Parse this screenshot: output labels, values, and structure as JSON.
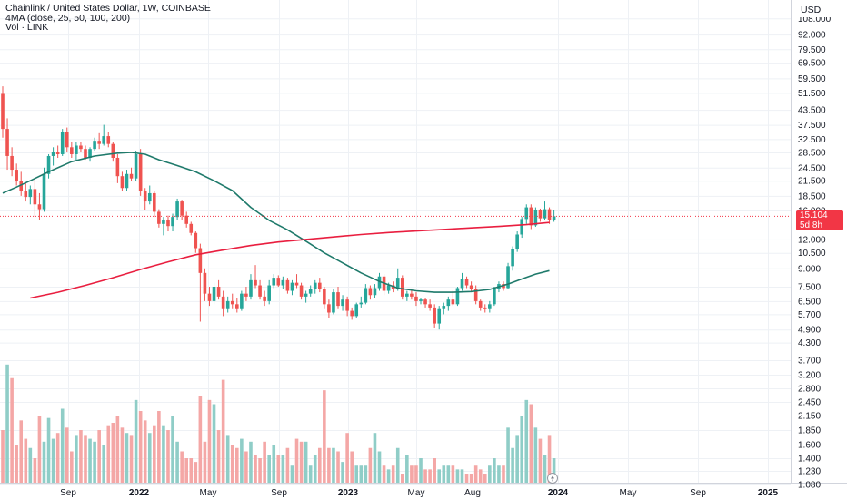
{
  "legend": {
    "title": "Chainlink / United States Dollar, 1W, COINBASE",
    "ma_label": "4MA (close, 25, 50, 100, 200)",
    "vol_label": "Vol · LINK"
  },
  "currency_button": "USD",
  "last_price": {
    "value": "15.104",
    "countdown": "5d 8h"
  },
  "colors": {
    "up": "#26a69a",
    "down": "#ef5350",
    "up_vol": "#8fcdc7",
    "down_vol": "#f4a7a6",
    "ma_short": "#1f7a6b",
    "ma_long": "#e91e3f",
    "grid": "#eef1f5",
    "text": "#131722"
  },
  "chart_data": {
    "type": "candlestick",
    "series_name": "Chainlink / United States Dollar",
    "y_scale": "log",
    "y_ticks": [
      "108.000",
      "92.000",
      "79.500",
      "69.500",
      "59.500",
      "51.500",
      "43.500",
      "37.500",
      "32.500",
      "28.500",
      "24.500",
      "21.500",
      "18.500",
      "16.000",
      "12.000",
      "10.500",
      "9.000",
      "7.500",
      "6.500",
      "5.700",
      "4.900",
      "4.300",
      "3.700",
      "3.200",
      "2.800",
      "2.450",
      "2.150",
      "1.850",
      "1.600",
      "1.400",
      "1.230",
      "1.080"
    ],
    "x_ticks": [
      "Sep",
      "2022",
      "May",
      "Sep",
      "2023",
      "May",
      "Aug",
      "2024",
      "May",
      "Sep",
      "2025"
    ],
    "current_price": 15.104,
    "candles": [
      [
        51.0,
        55.0,
        33.0,
        36.0
      ],
      [
        36.0,
        40.0,
        24.0,
        27.5
      ],
      [
        27.5,
        30.0,
        22.5,
        24.0
      ],
      [
        24.0,
        25.5,
        20.5,
        21.5
      ],
      [
        21.5,
        23.5,
        18.5,
        19.5
      ],
      [
        19.5,
        21.0,
        17.5,
        18.3
      ],
      [
        18.3,
        20.5,
        17.0,
        19.8
      ],
      [
        19.8,
        22.0,
        15.0,
        17.0
      ],
      [
        17.0,
        19.0,
        14.5,
        16.2
      ],
      [
        16.2,
        24.5,
        15.8,
        23.0
      ],
      [
        23.0,
        28.0,
        22.0,
        27.5
      ],
      [
        27.5,
        30.0,
        25.0,
        28.5
      ],
      [
        28.5,
        30.5,
        27.0,
        28.0
      ],
      [
        28.0,
        36.0,
        27.5,
        35.0
      ],
      [
        35.0,
        36.5,
        28.5,
        30.0
      ],
      [
        30.0,
        31.5,
        27.0,
        28.0
      ],
      [
        28.0,
        31.5,
        26.5,
        30.5
      ],
      [
        30.5,
        31.5,
        28.5,
        29.5
      ],
      [
        29.5,
        30.5,
        26.5,
        27.0
      ],
      [
        27.0,
        30.0,
        26.0,
        29.5
      ],
      [
        29.5,
        33.0,
        29.0,
        32.0
      ],
      [
        32.0,
        34.5,
        29.5,
        31.0
      ],
      [
        31.0,
        37.5,
        30.5,
        33.5
      ],
      [
        33.5,
        35.0,
        30.0,
        31.0
      ],
      [
        31.0,
        31.5,
        26.0,
        27.0
      ],
      [
        27.0,
        28.0,
        21.0,
        22.5
      ],
      [
        22.5,
        23.5,
        19.5,
        20.0
      ],
      [
        20.0,
        24.0,
        19.5,
        23.0
      ],
      [
        23.0,
        24.5,
        21.5,
        22.0
      ],
      [
        22.0,
        29.0,
        21.5,
        28.0
      ],
      [
        28.0,
        29.5,
        18.5,
        19.5
      ],
      [
        19.5,
        20.0,
        16.0,
        17.5
      ],
      [
        17.5,
        20.5,
        17.0,
        19.0
      ],
      [
        19.0,
        19.5,
        15.0,
        15.8
      ],
      [
        15.8,
        16.2,
        13.5,
        14.0
      ],
      [
        14.0,
        15.0,
        12.5,
        14.6
      ],
      [
        14.6,
        15.2,
        13.0,
        13.7
      ],
      [
        13.7,
        15.5,
        13.0,
        15.0
      ],
      [
        15.0,
        18.0,
        14.5,
        17.5
      ],
      [
        17.5,
        17.8,
        14.5,
        15.2
      ],
      [
        15.2,
        15.8,
        13.5,
        14.0
      ],
      [
        14.0,
        14.3,
        12.5,
        12.8
      ],
      [
        12.8,
        13.0,
        10.5,
        11.0
      ],
      [
        11.0,
        11.5,
        5.3,
        8.6
      ],
      [
        8.6,
        9.0,
        6.5,
        7.0
      ],
      [
        7.0,
        7.5,
        6.2,
        6.5
      ],
      [
        6.5,
        7.8,
        6.3,
        7.5
      ],
      [
        7.5,
        8.0,
        6.6,
        6.8
      ],
      [
        6.8,
        7.2,
        5.6,
        6.0
      ],
      [
        6.0,
        6.8,
        5.8,
        6.5
      ],
      [
        6.5,
        7.0,
        6.0,
        6.3
      ],
      [
        6.3,
        6.7,
        5.8,
        6.0
      ],
      [
        6.0,
        7.2,
        5.9,
        7.0
      ],
      [
        7.0,
        7.5,
        6.5,
        6.8
      ],
      [
        6.8,
        8.5,
        6.6,
        8.0
      ],
      [
        8.0,
        9.3,
        7.4,
        7.6
      ],
      [
        7.6,
        8.0,
        6.6,
        6.8
      ],
      [
        6.8,
        7.2,
        6.2,
        6.5
      ],
      [
        6.5,
        8.0,
        6.3,
        7.6
      ],
      [
        7.6,
        8.5,
        7.4,
        8.2
      ],
      [
        8.2,
        8.4,
        7.5,
        7.6
      ],
      [
        7.6,
        8.3,
        7.3,
        8.0
      ],
      [
        8.0,
        8.2,
        7.0,
        7.2
      ],
      [
        7.2,
        8.0,
        6.9,
        7.8
      ],
      [
        7.8,
        8.5,
        7.4,
        7.6
      ],
      [
        7.6,
        7.8,
        6.6,
        6.8
      ],
      [
        6.8,
        7.2,
        6.4,
        7.0
      ],
      [
        7.0,
        7.6,
        6.8,
        7.3
      ],
      [
        7.3,
        8.0,
        7.0,
        7.8
      ],
      [
        7.8,
        8.2,
        7.1,
        7.3
      ],
      [
        7.3,
        7.5,
        6.0,
        6.3
      ],
      [
        6.3,
        6.6,
        5.5,
        5.8
      ],
      [
        5.8,
        7.3,
        5.7,
        7.1
      ],
      [
        7.1,
        7.5,
        6.0,
        6.2
      ],
      [
        6.2,
        6.9,
        5.9,
        6.6
      ],
      [
        6.6,
        6.8,
        5.6,
        5.9
      ],
      [
        5.9,
        6.1,
        5.4,
        5.6
      ],
      [
        5.6,
        6.4,
        5.5,
        6.3
      ],
      [
        6.3,
        6.8,
        6.1,
        6.4
      ],
      [
        6.4,
        7.7,
        6.3,
        7.4
      ],
      [
        7.4,
        7.6,
        6.6,
        6.9
      ],
      [
        6.9,
        7.7,
        6.7,
        7.4
      ],
      [
        7.4,
        8.6,
        7.2,
        8.3
      ],
      [
        8.3,
        8.5,
        6.9,
        7.2
      ],
      [
        7.2,
        7.8,
        7.0,
        7.6
      ],
      [
        7.6,
        7.9,
        7.1,
        7.3
      ],
      [
        7.3,
        9.0,
        7.2,
        8.2
      ],
      [
        8.2,
        8.4,
        6.6,
        6.8
      ],
      [
        6.8,
        7.2,
        6.5,
        7.0
      ],
      [
        7.0,
        7.3,
        6.6,
        6.8
      ],
      [
        6.8,
        7.1,
        6.2,
        6.5
      ],
      [
        6.5,
        6.7,
        6.3,
        6.6
      ],
      [
        6.6,
        6.7,
        6.1,
        6.3
      ],
      [
        6.3,
        6.6,
        5.9,
        6.1
      ],
      [
        6.1,
        6.3,
        5.0,
        5.2
      ],
      [
        5.2,
        6.2,
        4.9,
        6.0
      ],
      [
        6.0,
        6.4,
        5.7,
        6.2
      ],
      [
        6.2,
        6.8,
        5.9,
        6.6
      ],
      [
        6.6,
        7.2,
        6.2,
        6.3
      ],
      [
        6.3,
        7.5,
        6.2,
        7.4
      ],
      [
        7.4,
        8.6,
        7.2,
        8.1
      ],
      [
        8.1,
        8.3,
        7.4,
        7.6
      ],
      [
        7.6,
        7.9,
        7.1,
        7.3
      ],
      [
        7.3,
        7.6,
        6.3,
        6.5
      ],
      [
        6.5,
        6.6,
        5.9,
        6.1
      ],
      [
        6.1,
        6.3,
        5.8,
        6.0
      ],
      [
        6.0,
        6.5,
        5.8,
        6.3
      ],
      [
        6.3,
        7.5,
        6.2,
        7.3
      ],
      [
        7.3,
        7.9,
        7.1,
        7.7
      ],
      [
        7.7,
        7.9,
        7.2,
        7.4
      ],
      [
        7.4,
        9.5,
        7.3,
        9.2
      ],
      [
        9.2,
        11.2,
        8.8,
        10.9
      ],
      [
        10.9,
        13.0,
        10.6,
        12.6
      ],
      [
        12.6,
        15.0,
        12.2,
        14.7
      ],
      [
        14.7,
        17.0,
        14.0,
        16.5
      ],
      [
        16.5,
        17.0,
        13.3,
        13.8
      ],
      [
        13.8,
        16.5,
        13.6,
        16.0
      ],
      [
        16.0,
        16.3,
        14.3,
        14.8
      ],
      [
        14.8,
        17.5,
        14.6,
        16.2
      ],
      [
        16.2,
        16.5,
        14.0,
        14.6
      ],
      [
        14.6,
        16.0,
        14.3,
        15.104
      ]
    ],
    "volume": [
      1.85,
      3.55,
      3.1,
      1.6,
      2.05,
      1.7,
      1.55,
      1.4,
      2.15,
      1.65,
      2.1,
      1.7,
      1.8,
      2.3,
      1.9,
      1.5,
      1.75,
      1.85,
      1.75,
      1.7,
      1.65,
      1.85,
      1.6,
      1.95,
      2.0,
      2.15,
      1.9,
      1.8,
      1.75,
      2.5,
      2.25,
      2.05,
      1.8,
      1.95,
      2.25,
      1.95,
      1.85,
      2.15,
      1.65,
      1.5,
      1.4,
      1.4,
      1.35,
      2.6,
      1.65,
      2.5,
      2.4,
      1.85,
      3.05,
      1.75,
      1.6,
      1.55,
      1.7,
      1.5,
      1.65,
      1.45,
      1.4,
      1.65,
      1.45,
      1.6,
      1.45,
      1.45,
      1.55,
      1.3,
      1.7,
      1.65,
      1.65,
      1.3,
      1.45,
      1.55,
      2.75,
      1.55,
      1.55,
      1.5,
      1.35,
      1.8,
      1.5,
      1.3,
      1.3,
      1.3,
      1.55,
      1.8,
      1.5,
      1.3,
      1.25,
      1.3,
      1.55,
      1.2,
      1.45,
      1.3,
      1.3,
      1.4,
      1.25,
      1.25,
      1.4,
      1.25,
      1.3,
      1.3,
      1.3,
      1.25,
      1.25,
      1.2,
      1.2,
      1.3,
      1.25,
      1.2,
      1.3,
      1.4,
      1.3,
      1.3,
      1.9,
      1.55,
      1.75,
      2.15,
      2.5,
      2.4,
      1.9,
      1.7,
      1.45,
      1.75,
      1.4
    ],
    "volume_up": [
      false,
      true,
      false,
      false,
      false,
      false,
      true,
      false,
      false,
      true,
      true,
      true,
      false,
      true,
      false,
      false,
      true,
      false,
      false,
      true,
      true,
      false,
      true,
      false,
      false,
      false,
      false,
      true,
      false,
      true,
      false,
      false,
      true,
      false,
      false,
      true,
      false,
      true,
      true,
      false,
      false,
      false,
      false,
      false,
      false,
      false,
      true,
      false,
      false,
      true,
      false,
      false,
      true,
      false,
      true,
      false,
      false,
      false,
      true,
      true,
      false,
      true,
      false,
      true,
      false,
      false,
      true,
      true,
      true,
      false,
      false,
      false,
      true,
      false,
      true,
      false,
      false,
      true,
      true,
      true,
      false,
      true,
      true,
      false,
      true,
      false,
      true,
      false,
      true,
      false,
      false,
      true,
      false,
      false,
      false,
      true,
      true,
      true,
      false,
      true,
      true,
      false,
      false,
      false,
      false,
      false,
      true,
      true,
      true,
      false,
      true,
      true,
      true,
      true,
      true,
      false,
      true,
      false,
      true,
      false,
      true
    ],
    "ma_short": [
      [
        0,
        19.0
      ],
      [
        3,
        20.2
      ],
      [
        6,
        21.5
      ],
      [
        10,
        23.5
      ],
      [
        15,
        26.0
      ],
      [
        20,
        27.5
      ],
      [
        25,
        28.3
      ],
      [
        28,
        28.5
      ],
      [
        31,
        28.0
      ],
      [
        34,
        26.5
      ],
      [
        38,
        25.0
      ],
      [
        42,
        23.5
      ],
      [
        46,
        21.5
      ],
      [
        50,
        19.5
      ],
      [
        54,
        16.5
      ],
      [
        58,
        14.5
      ],
      [
        62,
        13.2
      ],
      [
        66,
        11.8
      ],
      [
        70,
        10.5
      ],
      [
        74,
        9.5
      ],
      [
        78,
        8.6
      ],
      [
        82,
        7.9
      ],
      [
        86,
        7.4
      ],
      [
        90,
        7.2
      ],
      [
        94,
        7.1
      ],
      [
        98,
        7.1
      ],
      [
        102,
        7.15
      ],
      [
        106,
        7.3
      ],
      [
        110,
        7.7
      ],
      [
        113,
        8.1
      ],
      [
        116,
        8.5
      ],
      [
        119,
        8.8
      ]
    ],
    "ma_long": [
      [
        6,
        6.7
      ],
      [
        12,
        7.1
      ],
      [
        18,
        7.6
      ],
      [
        24,
        8.2
      ],
      [
        30,
        8.9
      ],
      [
        36,
        9.6
      ],
      [
        42,
        10.3
      ],
      [
        48,
        10.8
      ],
      [
        54,
        11.3
      ],
      [
        60,
        11.7
      ],
      [
        66,
        12.0
      ],
      [
        72,
        12.3
      ],
      [
        78,
        12.6
      ],
      [
        84,
        12.85
      ],
      [
        90,
        13.05
      ],
      [
        96,
        13.25
      ],
      [
        102,
        13.45
      ],
      [
        108,
        13.65
      ],
      [
        114,
        13.9
      ],
      [
        119,
        14.2
      ]
    ]
  }
}
